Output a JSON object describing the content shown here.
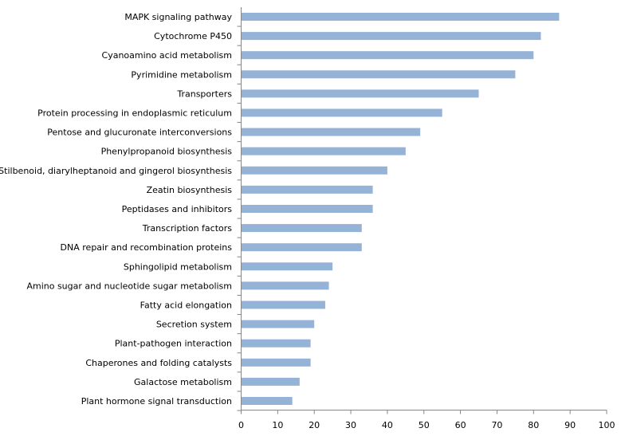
{
  "chart_data": {
    "type": "bar",
    "orientation": "horizontal",
    "title": "",
    "xlabel": "",
    "ylabel": "",
    "xlim": [
      0,
      100
    ],
    "xticks": [
      0,
      10,
      20,
      30,
      40,
      50,
      60,
      70,
      80,
      90,
      100
    ],
    "grid": false,
    "bar_color": "#95B3D7",
    "categories": [
      "MAPK signaling pathway",
      "Cytochrome P450",
      "Cyanoamino acid metabolism",
      "Pyrimidine metabolism",
      "Transporters",
      "Protein processing in endoplasmic reticulum",
      "Pentose and glucuronate interconversions",
      "Phenylpropanoid biosynthesis",
      "Stilbenoid, diarylheptanoid and gingerol biosynthesis",
      "Zeatin biosynthesis",
      "Peptidases and inhibitors",
      "Transcription factors",
      "DNA repair and recombination proteins",
      "Sphingolipid metabolism",
      "Amino sugar and nucleotide sugar metabolism",
      "Fatty acid elongation",
      "Secretion system",
      "Plant-pathogen interaction",
      "Chaperones and folding catalysts",
      "Galactose metabolism",
      "Plant hormone signal transduction"
    ],
    "values": [
      87,
      82,
      80,
      75,
      65,
      55,
      49,
      45,
      40,
      36,
      36,
      33,
      33,
      25,
      24,
      23,
      20,
      19,
      19,
      16,
      14
    ]
  }
}
